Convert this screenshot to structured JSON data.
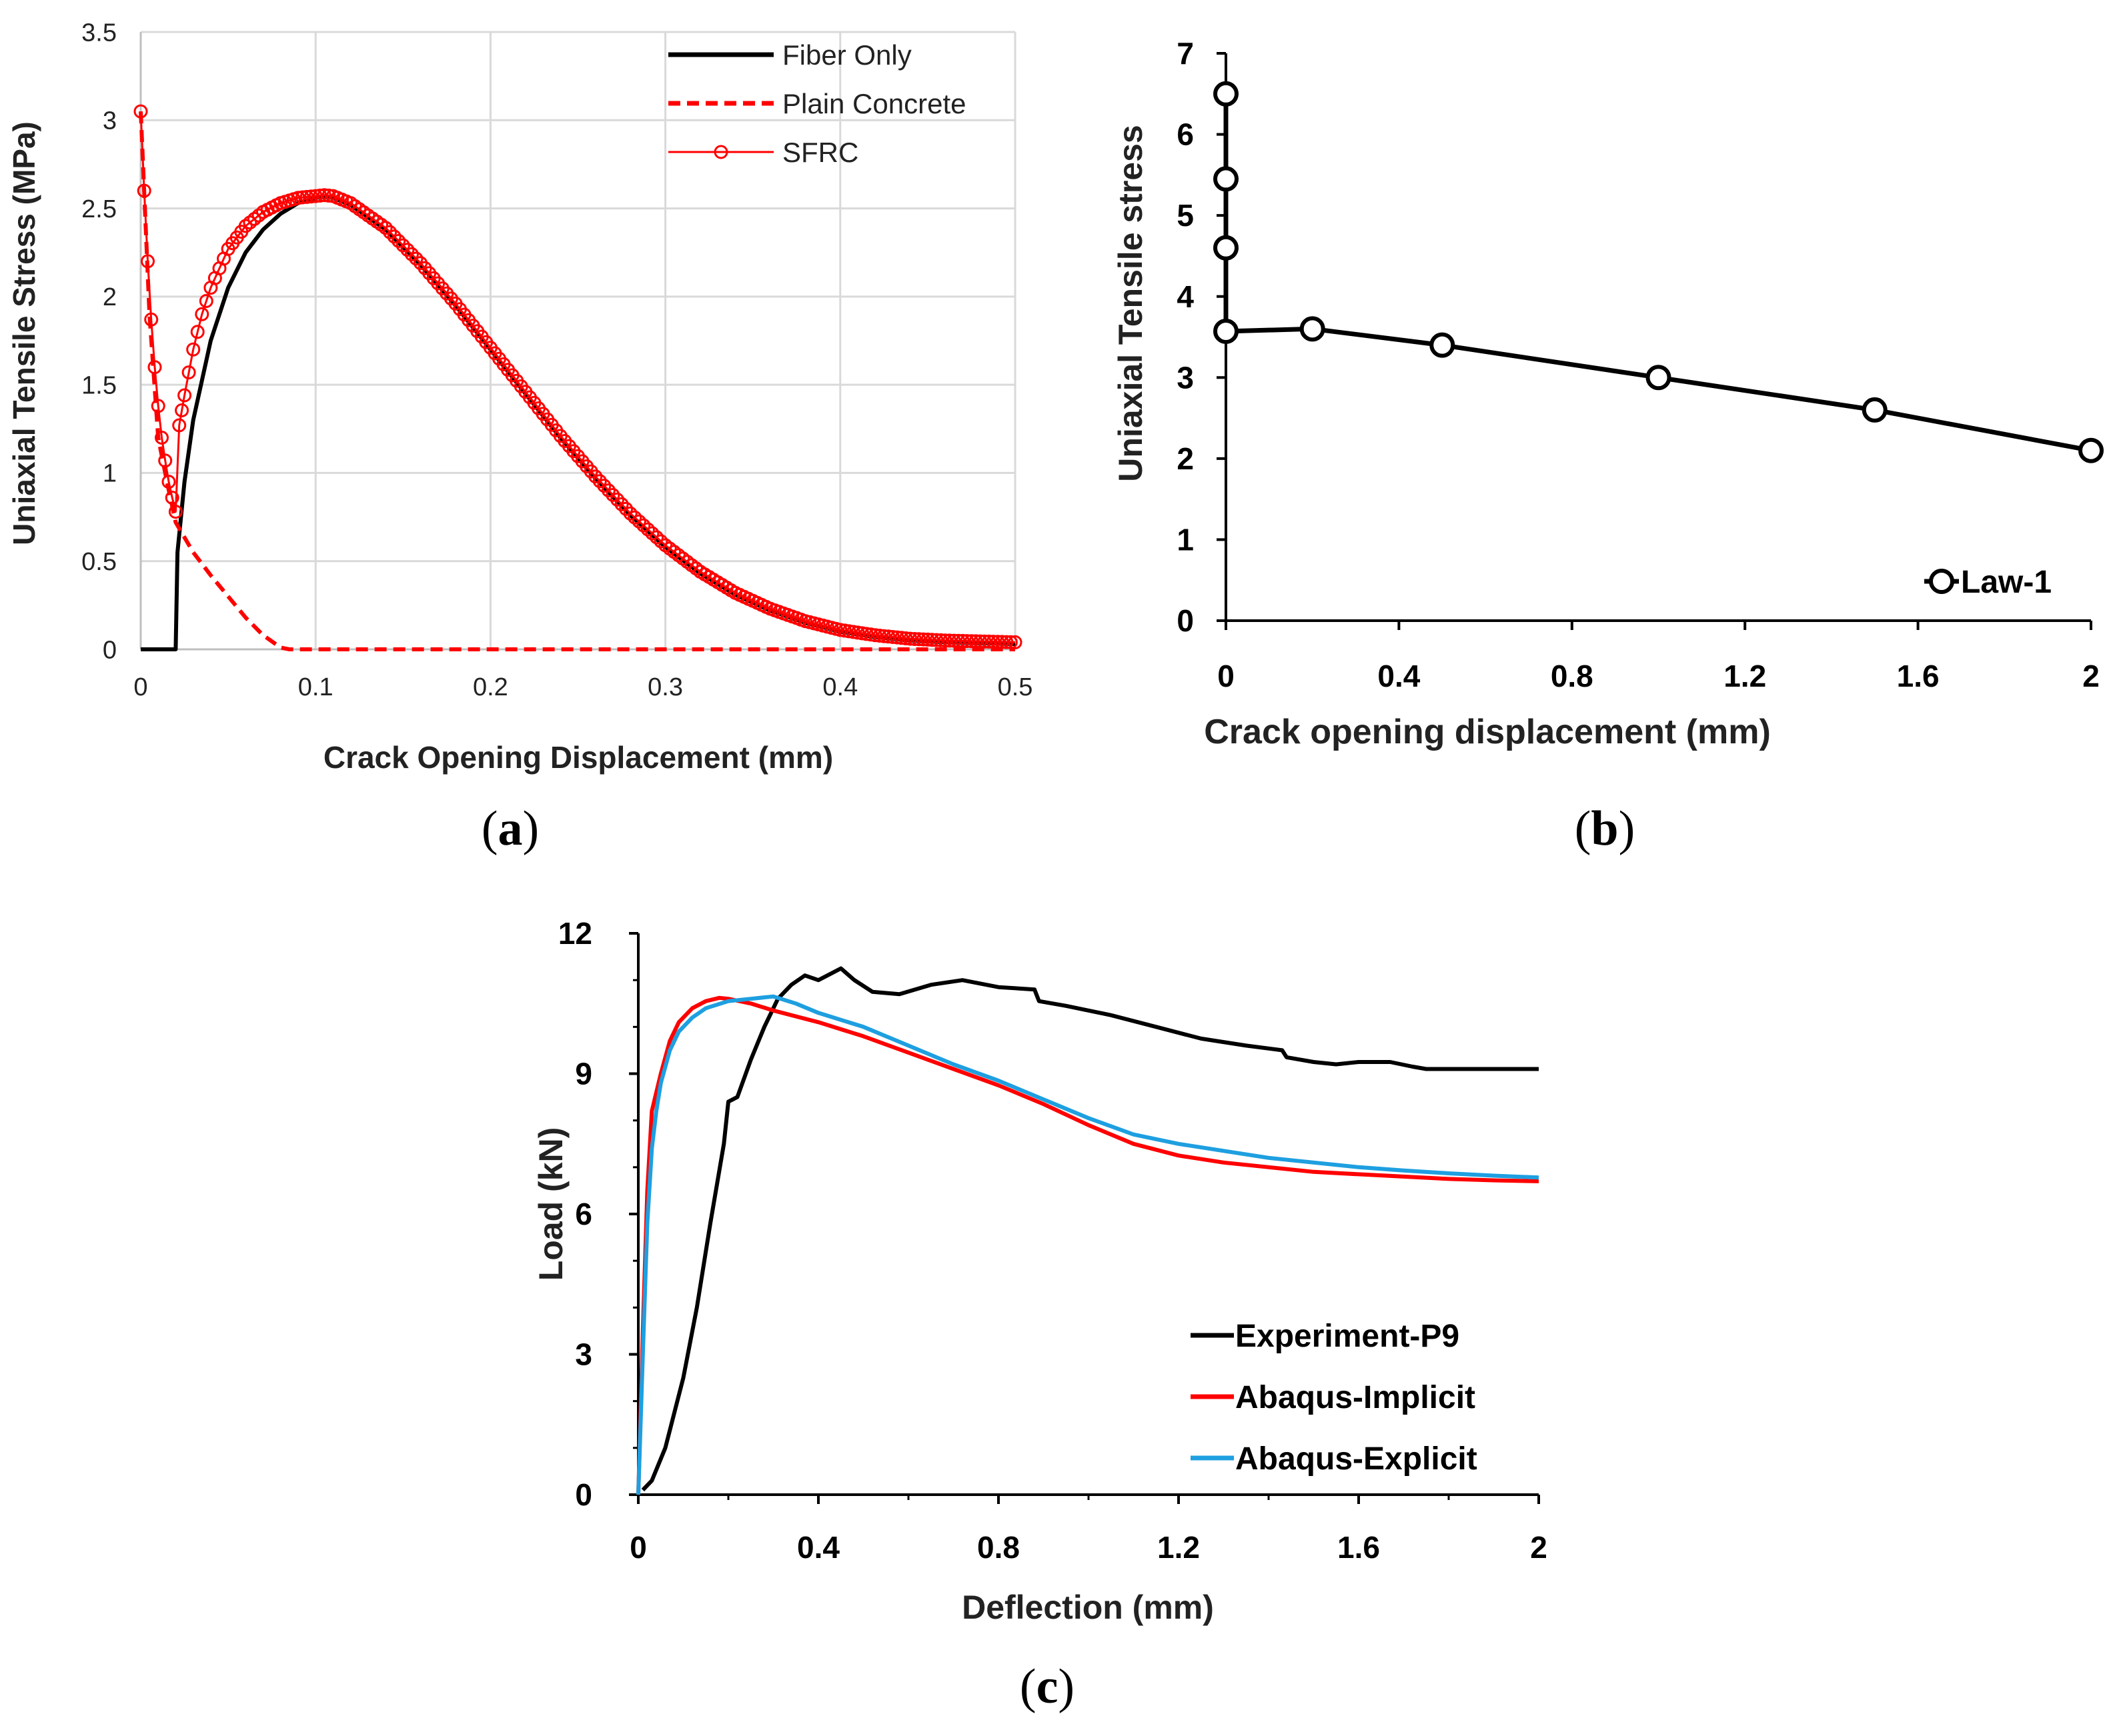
{
  "colors": {
    "black": "#000000",
    "red": "#ff0000",
    "blue": "#1e9fe0",
    "grid": "#d9d9d9"
  },
  "panels": {
    "a": {
      "label_open": "(",
      "label_letter": "a",
      "label_close": ")"
    },
    "b": {
      "label_open": "(",
      "label_letter": "b",
      "label_close": ")"
    },
    "c": {
      "label_open": "(",
      "label_letter": "c",
      "label_close": ")"
    }
  },
  "chart_data": [
    {
      "id": "a",
      "type": "line",
      "xlabel": "Crack Opening Displacement (mm)",
      "ylabel": "Uniaxial Tensile Stress (MPa)",
      "xlim": [
        0,
        0.5
      ],
      "ylim": [
        0,
        3.5
      ],
      "xticks": [
        "0",
        "0.1",
        "0.2",
        "0.3",
        "0.4",
        "0.5"
      ],
      "yticks": [
        "0",
        "0.5",
        "1",
        "1.5",
        "2",
        "2.5",
        "3",
        "3.5"
      ],
      "grid": true,
      "legend_position": "top-right",
      "series": [
        {
          "name": "Fiber Only",
          "color": "#000000",
          "style": "solid",
          "x": [
            0,
            0.02,
            0.021,
            0.025,
            0.03,
            0.04,
            0.05,
            0.06,
            0.07,
            0.08,
            0.09,
            0.1,
            0.105,
            0.11,
            0.12,
            0.14,
            0.16,
            0.18,
            0.2,
            0.22,
            0.24,
            0.26,
            0.28,
            0.3,
            0.32,
            0.34,
            0.36,
            0.38,
            0.4,
            0.42,
            0.44,
            0.46,
            0.48,
            0.5
          ],
          "y": [
            0,
            0,
            0.55,
            0.95,
            1.3,
            1.75,
            2.05,
            2.25,
            2.38,
            2.47,
            2.53,
            2.56,
            2.565,
            2.56,
            2.52,
            2.38,
            2.18,
            1.95,
            1.7,
            1.45,
            1.2,
            0.97,
            0.76,
            0.58,
            0.43,
            0.31,
            0.22,
            0.15,
            0.1,
            0.07,
            0.05,
            0.04,
            0.035,
            0.03
          ]
        },
        {
          "name": "Plain Concrete",
          "color": "#ff0000",
          "style": "dashed",
          "x": [
            0,
            0.005,
            0.01,
            0.015,
            0.02,
            0.03,
            0.04,
            0.05,
            0.06,
            0.07,
            0.08,
            0.085,
            0.1,
            0.2,
            0.3,
            0.4,
            0.5
          ],
          "y": [
            3.05,
            1.9,
            1.2,
            0.95,
            0.72,
            0.55,
            0.42,
            0.3,
            0.18,
            0.08,
            0.01,
            0,
            0,
            0,
            0,
            0,
            0
          ]
        },
        {
          "name": "SFRC",
          "color": "#ff0000",
          "style": "line-marker",
          "x": [
            0,
            0.002,
            0.004,
            0.006,
            0.008,
            0.01,
            0.012,
            0.014,
            0.016,
            0.018,
            0.02,
            0.022,
            0.025,
            0.03,
            0.035,
            0.04,
            0.05,
            0.06,
            0.07,
            0.08,
            0.09,
            0.1,
            0.105,
            0.11,
            0.12,
            0.14,
            0.16,
            0.18,
            0.2,
            0.22,
            0.24,
            0.26,
            0.28,
            0.3,
            0.32,
            0.34,
            0.36,
            0.38,
            0.4,
            0.42,
            0.44,
            0.46,
            0.48,
            0.5
          ],
          "y": [
            3.05,
            2.6,
            2.2,
            1.87,
            1.6,
            1.38,
            1.2,
            1.07,
            0.95,
            0.86,
            0.78,
            1.27,
            1.44,
            1.7,
            1.9,
            2.05,
            2.27,
            2.4,
            2.48,
            2.53,
            2.56,
            2.57,
            2.575,
            2.57,
            2.53,
            2.39,
            2.19,
            1.96,
            1.71,
            1.46,
            1.21,
            0.98,
            0.77,
            0.59,
            0.44,
            0.32,
            0.23,
            0.16,
            0.11,
            0.08,
            0.06,
            0.05,
            0.045,
            0.04
          ]
        }
      ]
    },
    {
      "id": "b",
      "type": "line",
      "xlabel": "Crack opening displacement (mm)",
      "ylabel": "Uniaxial Tensile stress",
      "xlim": [
        0,
        2
      ],
      "ylim": [
        0,
        7
      ],
      "xticks": [
        "0",
        "0.4",
        "0.8",
        "1.2",
        "1.6",
        "2"
      ],
      "yticks": [
        "0",
        "1",
        "2",
        "3",
        "4",
        "5",
        "6",
        "7"
      ],
      "grid": false,
      "legend_position": "bottom-right",
      "series": [
        {
          "name": "Law-1",
          "color": "#000000",
          "style": "line-marker",
          "x": [
            0,
            0,
            0,
            0,
            0.2,
            0.5,
            1.0,
            1.5,
            2.0
          ],
          "y": [
            6.5,
            5.45,
            4.6,
            3.57,
            3.6,
            3.4,
            3.0,
            2.6,
            2.1
          ]
        }
      ]
    },
    {
      "id": "c",
      "type": "line",
      "xlabel": "Deflection (mm)",
      "ylabel": "Load (kN)",
      "xlim": [
        0,
        2
      ],
      "ylim": [
        0,
        12
      ],
      "xticks": [
        "0",
        "0.4",
        "0.8",
        "1.2",
        "1.6",
        "2"
      ],
      "yticks": [
        "0",
        "3",
        "6",
        "9",
        "12"
      ],
      "grid": false,
      "legend_position": "bottom-right",
      "series": [
        {
          "name": "Experiment-P9",
          "color": "#000000",
          "style": "solid",
          "x": [
            0.01,
            0.03,
            0.06,
            0.1,
            0.13,
            0.16,
            0.19,
            0.2,
            0.22,
            0.25,
            0.28,
            0.31,
            0.34,
            0.37,
            0.4,
            0.42,
            0.45,
            0.48,
            0.52,
            0.58,
            0.65,
            0.72,
            0.8,
            0.88,
            0.89,
            0.95,
            1.05,
            1.15,
            1.25,
            1.35,
            1.43,
            1.44,
            1.5,
            1.55,
            1.6,
            1.67,
            1.72,
            1.75,
            1.8,
            1.9,
            2.0
          ],
          "y": [
            0.1,
            0.3,
            1.0,
            2.5,
            4.0,
            5.8,
            7.5,
            8.4,
            8.5,
            9.3,
            10.0,
            10.6,
            10.9,
            11.1,
            11.0,
            11.1,
            11.25,
            11.0,
            10.75,
            10.7,
            10.9,
            11.0,
            10.85,
            10.8,
            10.55,
            10.45,
            10.25,
            10.0,
            9.75,
            9.6,
            9.5,
            9.35,
            9.25,
            9.2,
            9.25,
            9.25,
            9.15,
            9.1,
            9.1,
            9.1,
            9.1
          ]
        },
        {
          "name": "Abaqus-Implicit",
          "color": "#ff0000",
          "style": "solid",
          "x": [
            0,
            0.01,
            0.02,
            0.03,
            0.04,
            0.05,
            0.07,
            0.09,
            0.12,
            0.15,
            0.18,
            0.2,
            0.25,
            0.3,
            0.4,
            0.5,
            0.6,
            0.7,
            0.8,
            0.9,
            1.0,
            1.1,
            1.2,
            1.3,
            1.4,
            1.5,
            1.6,
            1.7,
            1.8,
            1.9,
            2.0
          ],
          "y": [
            0,
            3.5,
            6.5,
            8.2,
            8.6,
            9.0,
            9.7,
            10.1,
            10.4,
            10.55,
            10.62,
            10.6,
            10.5,
            10.35,
            10.1,
            9.8,
            9.45,
            9.1,
            8.75,
            8.35,
            7.9,
            7.5,
            7.25,
            7.1,
            7.0,
            6.9,
            6.85,
            6.8,
            6.75,
            6.72,
            6.7
          ]
        },
        {
          "name": "Abaqus-Explicit",
          "color": "#1e9fe0",
          "style": "solid",
          "x": [
            0,
            0.01,
            0.02,
            0.03,
            0.04,
            0.05,
            0.07,
            0.09,
            0.12,
            0.15,
            0.2,
            0.25,
            0.3,
            0.35,
            0.4,
            0.5,
            0.6,
            0.7,
            0.8,
            0.9,
            1.0,
            1.1,
            1.2,
            1.3,
            1.4,
            1.5,
            1.6,
            1.7,
            1.8,
            1.9,
            2.0
          ],
          "y": [
            0,
            3.0,
            5.8,
            7.4,
            8.2,
            8.8,
            9.5,
            9.9,
            10.2,
            10.4,
            10.55,
            10.6,
            10.65,
            10.5,
            10.3,
            10.0,
            9.6,
            9.2,
            8.85,
            8.45,
            8.05,
            7.7,
            7.5,
            7.35,
            7.2,
            7.1,
            7.0,
            6.93,
            6.87,
            6.82,
            6.78
          ]
        }
      ]
    }
  ]
}
